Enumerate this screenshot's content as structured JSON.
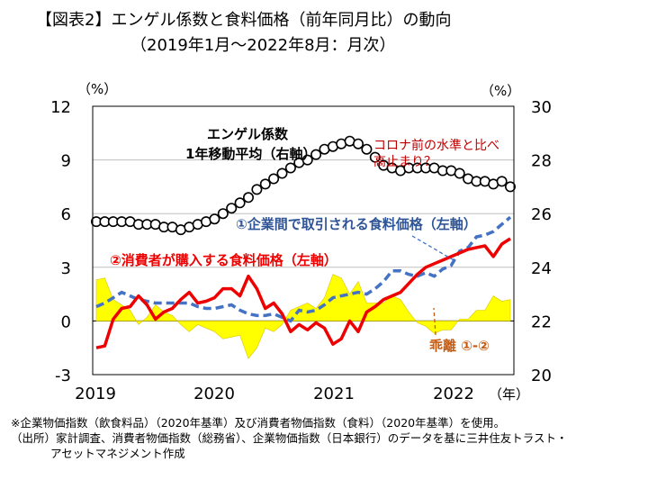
{
  "title": "【図表2】エンゲル係数と食料価格（前年同月比）の動向",
  "subtitle": "（2019年1月～2022年8月：月次）",
  "notes": [
    "※企業物価指数（飲食料品）（2020年基準）及び消費者物価指数（食料）（2020年基準）を使用。",
    "（出所）家計調査、消費者物価指数（総務省）、企業物価指数（日本銀行）のデータを基に三井住友トラスト・",
    "アセットマネジメント作成"
  ],
  "chart_data": {
    "type": "line",
    "title": "",
    "y_left": {
      "label": "（%）",
      "ticks": [
        "12",
        "9",
        "6",
        "3",
        "0",
        "-3"
      ],
      "range": [
        -3,
        12
      ]
    },
    "y_right": {
      "label": "（%）",
      "ticks": [
        "30",
        "28",
        "26",
        "24",
        "22",
        "20"
      ],
      "range": [
        20,
        30
      ]
    },
    "x_ticks": [
      "2019",
      "2020",
      "2021",
      "2022"
    ],
    "x_unit": "（年）",
    "x_range": [
      "2019-01",
      "2022-08"
    ],
    "grid": true,
    "legend": "none",
    "annotations": {
      "engel": "エンゲル係数\n1年移動平均（右軸）",
      "corona": "コロナ前の水準と比べ\n高止まり？",
      "wholesale": "①企業間で取引される食料価格（左軸）",
      "consumer": "②消費者が購入する食料価格（左軸）",
      "gap": "乖離 ①-②"
    },
    "colors": {
      "consumer": "#ee0000",
      "wholesale": "#4472c4",
      "gap": "#ffff00",
      "engel": "#000000",
      "corona_text": "#c00000",
      "gap_text": "#c55a11",
      "wholesale_text": "#2f5597"
    },
    "series": [
      {
        "name": "①企業間で取引される食料価格",
        "axis": "left",
        "values": [
          0.8,
          1.0,
          1.3,
          1.6,
          1.4,
          1.2,
          1.1,
          1.0,
          1.0,
          1.0,
          1.0,
          1.0,
          0.8,
          0.7,
          0.7,
          0.8,
          0.9,
          0.6,
          0.4,
          0.3,
          0.3,
          0.4,
          0.2,
          0.0,
          0.6,
          0.5,
          0.6,
          0.9,
          1.3,
          1.4,
          1.5,
          1.6,
          1.5,
          1.8,
          2.2,
          2.8,
          2.8,
          2.6,
          2.5,
          2.7,
          2.5,
          2.9,
          3.1,
          3.9,
          4.1,
          4.7,
          4.8,
          5.0,
          5.4,
          5.8
        ]
      },
      {
        "name": "②消費者が購入する食料価格",
        "axis": "left",
        "values": [
          -1.5,
          -1.4,
          0.1,
          0.7,
          0.8,
          1.4,
          0.9,
          0.1,
          0.5,
          0.7,
          1.2,
          1.6,
          1.0,
          1.1,
          1.3,
          1.8,
          1.8,
          1.4,
          2.5,
          1.8,
          0.7,
          1.0,
          0.4,
          -0.6,
          -0.2,
          -0.5,
          -0.1,
          -0.4,
          -1.3,
          -1.0,
          0.0,
          -0.6,
          0.5,
          0.8,
          1.2,
          1.4,
          1.6,
          2.1,
          2.6,
          3.0,
          3.2,
          3.4,
          3.6,
          3.8,
          4.0,
          4.1,
          4.2,
          3.6,
          4.3,
          4.6
        ]
      },
      {
        "name": "乖離 ①-②",
        "axis": "left",
        "values": [
          2.3,
          2.4,
          1.2,
          0.9,
          0.6,
          -0.2,
          0.2,
          0.9,
          0.5,
          0.3,
          -0.2,
          -0.6,
          -0.2,
          -0.4,
          -0.6,
          -1.0,
          -0.9,
          -0.8,
          -2.1,
          -1.5,
          -0.4,
          -0.6,
          -0.2,
          0.6,
          0.8,
          1.0,
          0.7,
          1.3,
          2.6,
          2.4,
          1.5,
          2.2,
          1.0,
          1.0,
          1.0,
          1.4,
          1.2,
          0.5,
          -0.1,
          -0.3,
          -0.7,
          -0.5,
          -0.5,
          0.1,
          0.1,
          0.6,
          0.6,
          1.4,
          1.1,
          1.2
        ]
      },
      {
        "name": "エンゲル係数1年移動平均",
        "axis": "right",
        "values": [
          25.7,
          25.7,
          25.7,
          25.7,
          25.7,
          25.6,
          25.6,
          25.6,
          25.5,
          25.5,
          25.4,
          25.5,
          25.6,
          25.7,
          25.8,
          26.0,
          26.2,
          26.4,
          26.6,
          26.9,
          27.1,
          27.3,
          27.5,
          27.7,
          27.9,
          28.0,
          28.2,
          28.4,
          28.5,
          28.6,
          28.7,
          28.6,
          28.4,
          28.1,
          27.8,
          27.7,
          27.6,
          27.7,
          27.7,
          27.7,
          27.7,
          27.6,
          27.6,
          27.5,
          27.3,
          27.2,
          27.2,
          27.1,
          27.2,
          27.0
        ]
      }
    ]
  }
}
